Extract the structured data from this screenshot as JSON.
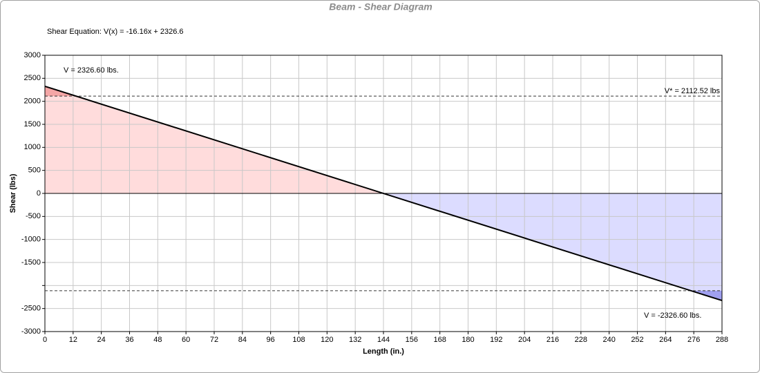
{
  "chart_data": {
    "type": "line",
    "title": "Beam - Shear Diagram",
    "subtitle": "Shear Equation:  V(x) = -16.16x + 2326.6",
    "x_label": "Length (in.)",
    "y_label": "Shear (lbs)",
    "x": [
      0,
      288
    ],
    "series": [
      {
        "name": "Shear",
        "color": "#000000",
        "values": [
          2326.6,
          -2326.6
        ]
      }
    ],
    "positive_fill": "#ffdcdc",
    "negative_fill": "#dcdcff",
    "positive_exceed_fill": "#f4a6a6",
    "negative_exceed_fill": "#a0a0f0",
    "ref_lines": [
      2112.52,
      -2112.52
    ],
    "annotations": [
      "V = 2326.60 lbs.",
      "V* = 2112.52 lbs",
      "V = -2326.60 lbs."
    ],
    "xlim": [
      0,
      288
    ],
    "xticks": [
      0,
      12,
      24,
      36,
      48,
      60,
      72,
      84,
      96,
      108,
      120,
      132,
      144,
      156,
      168,
      180,
      192,
      204,
      216,
      228,
      240,
      252,
      264,
      276,
      288
    ],
    "ylim": [
      -3000,
      3000
    ],
    "yticks": [
      -3000,
      -2500,
      {
        "value": -2000,
        "label": null
      },
      -1500,
      -1000,
      -500,
      0,
      500,
      1000,
      1500,
      2000,
      2500,
      3000
    ],
    "grid": true
  }
}
